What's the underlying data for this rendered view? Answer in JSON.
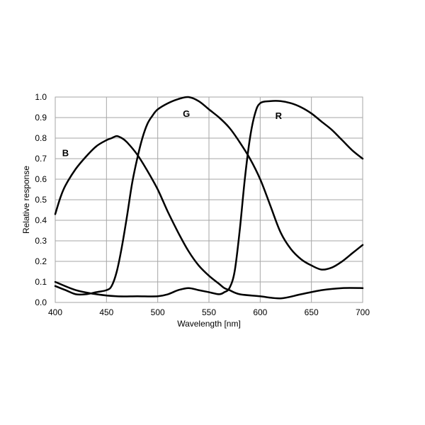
{
  "chart_data": {
    "type": "line",
    "xlabel": "Wavelength [nm]",
    "ylabel": "Relative response",
    "xlim": [
      400,
      700
    ],
    "ylim": [
      0,
      1.0
    ],
    "xticks": [
      400,
      450,
      500,
      550,
      600,
      650,
      700
    ],
    "xtick_labels": [
      "400",
      "450",
      "500",
      "550",
      "600",
      "650",
      "700"
    ],
    "yticks": [
      0,
      0.1,
      0.2,
      0.3,
      0.4,
      0.5,
      0.6,
      0.7,
      0.8,
      0.9,
      1.0
    ],
    "ytick_labels": [
      "0.0",
      "0.1",
      "0.2",
      "0.3",
      "0.4",
      "0.5",
      "0.6",
      "0.7",
      "0.8",
      "0.9",
      "1.0"
    ],
    "grid": true,
    "line_color": "#000000",
    "grid_color": "#a6a6a6",
    "series": [
      {
        "name": "B",
        "label_at": [
          410,
          0.73
        ],
        "points": [
          [
            400,
            0.43
          ],
          [
            405,
            0.51
          ],
          [
            410,
            0.57
          ],
          [
            420,
            0.65
          ],
          [
            430,
            0.71
          ],
          [
            440,
            0.76
          ],
          [
            450,
            0.79
          ],
          [
            455,
            0.8
          ],
          [
            460,
            0.81
          ],
          [
            465,
            0.8
          ],
          [
            470,
            0.78
          ],
          [
            480,
            0.72
          ],
          [
            490,
            0.64
          ],
          [
            500,
            0.55
          ],
          [
            510,
            0.44
          ],
          [
            520,
            0.34
          ],
          [
            530,
            0.25
          ],
          [
            540,
            0.18
          ],
          [
            550,
            0.13
          ],
          [
            560,
            0.09
          ],
          [
            565,
            0.07
          ],
          [
            570,
            0.06
          ],
          [
            580,
            0.04
          ],
          [
            600,
            0.03
          ],
          [
            620,
            0.02
          ],
          [
            640,
            0.04
          ],
          [
            660,
            0.06
          ],
          [
            680,
            0.07
          ],
          [
            700,
            0.07
          ]
        ]
      },
      {
        "name": "G",
        "label_at": [
          528,
          0.92
        ],
        "points": [
          [
            400,
            0.08
          ],
          [
            410,
            0.06
          ],
          [
            420,
            0.04
          ],
          [
            430,
            0.04
          ],
          [
            440,
            0.05
          ],
          [
            450,
            0.06
          ],
          [
            455,
            0.08
          ],
          [
            460,
            0.15
          ],
          [
            465,
            0.27
          ],
          [
            470,
            0.42
          ],
          [
            475,
            0.58
          ],
          [
            480,
            0.7
          ],
          [
            485,
            0.8
          ],
          [
            490,
            0.87
          ],
          [
            495,
            0.91
          ],
          [
            500,
            0.94
          ],
          [
            510,
            0.97
          ],
          [
            520,
            0.99
          ],
          [
            530,
            1.0
          ],
          [
            540,
            0.98
          ],
          [
            550,
            0.94
          ],
          [
            560,
            0.9
          ],
          [
            570,
            0.85
          ],
          [
            580,
            0.78
          ],
          [
            590,
            0.7
          ],
          [
            600,
            0.6
          ],
          [
            610,
            0.47
          ],
          [
            620,
            0.34
          ],
          [
            630,
            0.26
          ],
          [
            640,
            0.21
          ],
          [
            650,
            0.18
          ],
          [
            660,
            0.16
          ],
          [
            670,
            0.17
          ],
          [
            680,
            0.2
          ],
          [
            690,
            0.24
          ],
          [
            700,
            0.28
          ]
        ]
      },
      {
        "name": "R",
        "label_at": [
          618,
          0.91
        ],
        "points": [
          [
            400,
            0.1
          ],
          [
            420,
            0.06
          ],
          [
            440,
            0.04
          ],
          [
            460,
            0.03
          ],
          [
            480,
            0.03
          ],
          [
            500,
            0.03
          ],
          [
            510,
            0.04
          ],
          [
            520,
            0.06
          ],
          [
            530,
            0.07
          ],
          [
            540,
            0.06
          ],
          [
            550,
            0.05
          ],
          [
            560,
            0.04
          ],
          [
            565,
            0.05
          ],
          [
            570,
            0.07
          ],
          [
            575,
            0.15
          ],
          [
            580,
            0.35
          ],
          [
            585,
            0.6
          ],
          [
            590,
            0.8
          ],
          [
            595,
            0.92
          ],
          [
            600,
            0.97
          ],
          [
            610,
            0.98
          ],
          [
            620,
            0.98
          ],
          [
            630,
            0.97
          ],
          [
            640,
            0.95
          ],
          [
            650,
            0.92
          ],
          [
            660,
            0.88
          ],
          [
            670,
            0.84
          ],
          [
            680,
            0.79
          ],
          [
            690,
            0.74
          ],
          [
            700,
            0.7
          ]
        ]
      }
    ]
  }
}
